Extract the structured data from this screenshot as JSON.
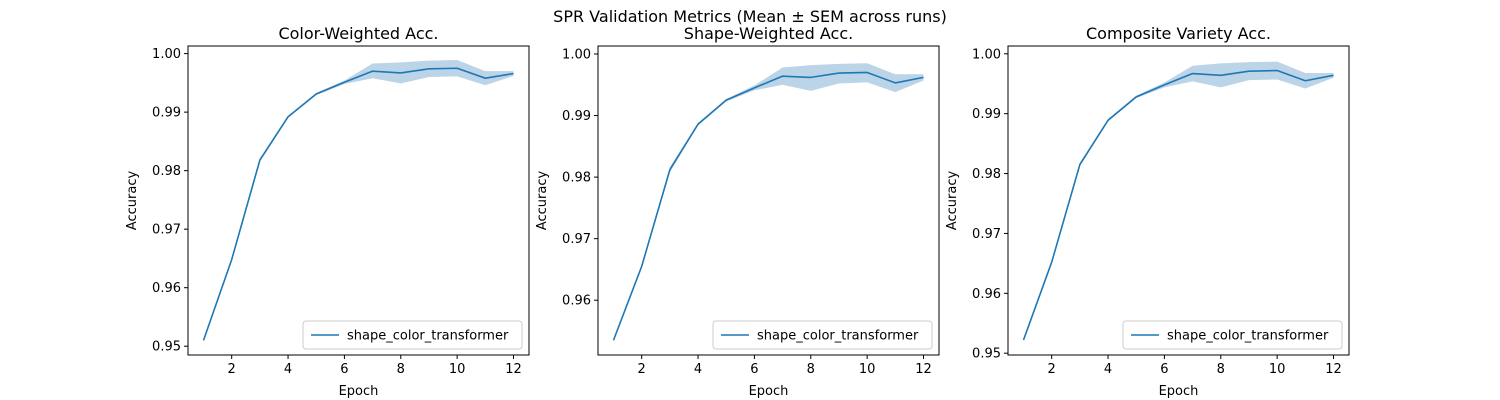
{
  "figure": {
    "suptitle": "SPR Validation Metrics (Mean ± SEM across runs)"
  },
  "colors": {
    "line": "#1f77b4",
    "band": "#bcd4e8",
    "frame": "#000000",
    "legend_border": "#cccccc"
  },
  "chart_data": [
    {
      "type": "line",
      "title": "Color-Weighted Acc.",
      "xlabel": "Epoch",
      "ylabel": "Accuracy",
      "xlim": [
        0.45,
        12.55
      ],
      "ylim": [
        0.9485,
        1.0013
      ],
      "xticks": [
        2,
        4,
        6,
        8,
        10,
        12
      ],
      "yticks": [
        0.95,
        0.96,
        0.97,
        0.98,
        0.99,
        1.0
      ],
      "ytick_labels": [
        "0.95",
        "0.96",
        "0.97",
        "0.98",
        "0.99",
        "1.00"
      ],
      "legend": "lower right",
      "grid": false,
      "series": [
        {
          "name": "shape_color_transformer",
          "x": [
            1,
            2,
            3,
            4,
            5,
            6,
            7,
            8,
            9,
            10,
            11,
            12
          ],
          "y": [
            0.951,
            0.9648,
            0.9818,
            0.9892,
            0.9931,
            0.9951,
            0.997,
            0.9967,
            0.9974,
            0.9975,
            0.9958,
            0.9966
          ],
          "lower": [
            0.9509,
            0.9647,
            0.9815,
            0.989,
            0.9929,
            0.9948,
            0.9958,
            0.9949,
            0.996,
            0.9961,
            0.9946,
            0.9962
          ],
          "upper": [
            0.9511,
            0.965,
            0.9821,
            0.9894,
            0.9933,
            0.9954,
            0.9983,
            0.9985,
            0.9988,
            0.9989,
            0.997,
            0.997
          ]
        }
      ]
    },
    {
      "type": "line",
      "title": "Shape-Weighted Acc.",
      "xlabel": "Epoch",
      "ylabel": "Accuracy",
      "xlim": [
        0.45,
        12.55
      ],
      "ylim": [
        0.9511,
        1.0013
      ],
      "xticks": [
        2,
        4,
        6,
        8,
        10,
        12
      ],
      "yticks": [
        0.96,
        0.97,
        0.98,
        0.99,
        1.0
      ],
      "ytick_labels": [
        "0.96",
        "0.97",
        "0.98",
        "0.99",
        "1.00"
      ],
      "legend": "lower right",
      "grid": false,
      "series": [
        {
          "name": "shape_color_transformer",
          "x": [
            1,
            2,
            3,
            4,
            5,
            6,
            7,
            8,
            9,
            10,
            11,
            12
          ],
          "y": [
            0.9535,
            0.9655,
            0.9812,
            0.9886,
            0.9925,
            0.9945,
            0.9964,
            0.9962,
            0.9969,
            0.997,
            0.9953,
            0.9962
          ],
          "lower": [
            0.9533,
            0.9653,
            0.9808,
            0.9884,
            0.9923,
            0.9941,
            0.995,
            0.994,
            0.9952,
            0.9954,
            0.9938,
            0.9957
          ],
          "upper": [
            0.9537,
            0.9657,
            0.9816,
            0.9888,
            0.9927,
            0.9949,
            0.9978,
            0.9982,
            0.9984,
            0.9985,
            0.9967,
            0.9967
          ]
        }
      ]
    },
    {
      "type": "line",
      "title": "Composite Variety Acc.",
      "xlabel": "Epoch",
      "ylabel": "Accuracy",
      "xlim": [
        0.45,
        12.55
      ],
      "ylim": [
        0.9497,
        1.0013
      ],
      "xticks": [
        2,
        4,
        6,
        8,
        10,
        12
      ],
      "yticks": [
        0.95,
        0.96,
        0.97,
        0.98,
        0.99,
        1.0
      ],
      "ytick_labels": [
        "0.95",
        "0.96",
        "0.97",
        "0.98",
        "0.99",
        "1.00"
      ],
      "legend": "lower right",
      "grid": false,
      "series": [
        {
          "name": "shape_color_transformer",
          "x": [
            1,
            2,
            3,
            4,
            5,
            6,
            7,
            8,
            9,
            10,
            11,
            12
          ],
          "y": [
            0.9522,
            0.9652,
            0.9815,
            0.9889,
            0.9928,
            0.9948,
            0.9967,
            0.9964,
            0.9971,
            0.9972,
            0.9955,
            0.9964
          ],
          "lower": [
            0.9521,
            0.965,
            0.9812,
            0.9887,
            0.9926,
            0.9944,
            0.9954,
            0.9944,
            0.9956,
            0.9957,
            0.9942,
            0.996
          ],
          "upper": [
            0.9523,
            0.9654,
            0.9818,
            0.9891,
            0.993,
            0.9952,
            0.998,
            0.9984,
            0.9986,
            0.9987,
            0.9968,
            0.9968
          ]
        }
      ]
    }
  ]
}
